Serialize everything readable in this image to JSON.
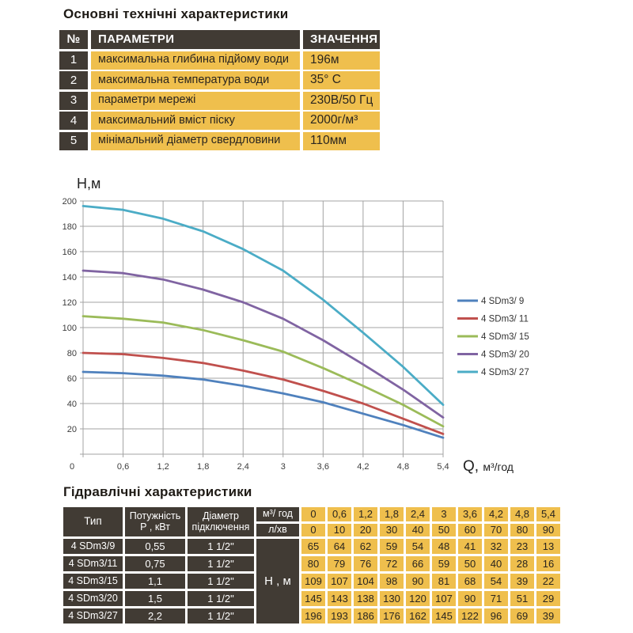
{
  "main_title": "Основні технічні характеристики",
  "top_table": {
    "headers": {
      "num": "№",
      "param": "ПАРАМЕТРИ",
      "value": "ЗНАЧЕННЯ"
    },
    "rows": [
      {
        "num": "1",
        "param": "максимальна глибина підйому води",
        "value": "196м"
      },
      {
        "num": "2",
        "param": "максимальна температура води",
        "value": "35° С"
      },
      {
        "num": "3",
        "param": "параметри мережі",
        "value": "230В/50 Гц"
      },
      {
        "num": "4",
        "param": "максимальний вміст піску",
        "value": "2000г/м³"
      },
      {
        "num": "5",
        "param": "мінімальний діаметр свердловини",
        "value": "110мм"
      }
    ]
  },
  "chart_data": {
    "type": "line",
    "title": "",
    "ylabel": "Н,м",
    "xlabel_q": "Q,",
    "xlabel_unit": "м³/год",
    "x": [
      0,
      0.6,
      1.2,
      1.8,
      2.4,
      3,
      3.6,
      4.2,
      4.8,
      5.4
    ],
    "x_tick_labels": [
      "0",
      "0,6",
      "1,2",
      "1,8",
      "2,4",
      "3",
      "3,6",
      "4,2",
      "4,8",
      "5,4"
    ],
    "ylim": [
      0,
      200
    ],
    "y_tick_step": 20,
    "grid": true,
    "legend_position": "right",
    "series": [
      {
        "name": "4 SDm3/ 9",
        "color": "#4F81BD",
        "values": [
          65,
          64,
          62,
          59,
          54,
          48,
          41,
          32,
          23,
          13
        ]
      },
      {
        "name": "4 SDm3/ 11",
        "color": "#C0504D",
        "values": [
          80,
          79,
          76,
          72,
          66,
          59,
          50,
          40,
          28,
          16
        ]
      },
      {
        "name": "4 SDm3/ 15",
        "color": "#9BBB59",
        "values": [
          109,
          107,
          104,
          98,
          90,
          81,
          68,
          54,
          39,
          22
        ]
      },
      {
        "name": "4 SDm3/ 20",
        "color": "#8064A2",
        "values": [
          145,
          143,
          138,
          130,
          120,
          107,
          90,
          71,
          51,
          29
        ]
      },
      {
        "name": "4 SDm3/ 27",
        "color": "#4BACC6",
        "values": [
          196,
          193,
          186,
          176,
          162,
          145,
          122,
          96,
          69,
          39
        ]
      }
    ]
  },
  "bottom_table": {
    "title": "Гідравлічні характеристики",
    "header": {
      "type": "Тип",
      "power_line1": "Потужність",
      "power_line2": "Р , кВт",
      "diameter_line1": "Діаметр",
      "diameter_line2": "підключення",
      "flow_m3_label": "м³/ год",
      "flow_lmin_label": "л/хв",
      "head_label": "Н , м",
      "flow_m3_values": [
        "0",
        "0,6",
        "1,2",
        "1,8",
        "2,4",
        "3",
        "3,6",
        "4,2",
        "4,8",
        "5,4"
      ],
      "flow_lmin_values": [
        "0",
        "10",
        "20",
        "30",
        "40",
        "50",
        "60",
        "70",
        "80",
        "90"
      ]
    },
    "rows": [
      {
        "type": "4 SDm3/9",
        "power": "0,55",
        "diameter": "1 1/2\"",
        "heads": [
          "65",
          "64",
          "62",
          "59",
          "54",
          "48",
          "41",
          "32",
          "23",
          "13"
        ]
      },
      {
        "type": "4 SDm3/11",
        "power": "0,75",
        "diameter": "1 1/2\"",
        "heads": [
          "80",
          "79",
          "76",
          "72",
          "66",
          "59",
          "50",
          "40",
          "28",
          "16"
        ]
      },
      {
        "type": "4 SDm3/15",
        "power": "1,1",
        "diameter": "1 1/2\"",
        "heads": [
          "109",
          "107",
          "104",
          "98",
          "90",
          "81",
          "68",
          "54",
          "39",
          "22"
        ]
      },
      {
        "type": "4 SDm3/20",
        "power": "1,5",
        "diameter": "1 1/2\"",
        "heads": [
          "145",
          "143",
          "138",
          "130",
          "120",
          "107",
          "90",
          "71",
          "51",
          "29"
        ]
      },
      {
        "type": "4 SDm3/27",
        "power": "2,2",
        "diameter": "1 1/2\"",
        "heads": [
          "196",
          "193",
          "186",
          "176",
          "162",
          "145",
          "122",
          "96",
          "69",
          "39"
        ]
      }
    ]
  },
  "colors": {
    "dark_cell": "#413B34",
    "yellow_cell": "#EFBF4D",
    "grid_line": "#A3A3A3",
    "tick_text": "#3C3C3C"
  }
}
